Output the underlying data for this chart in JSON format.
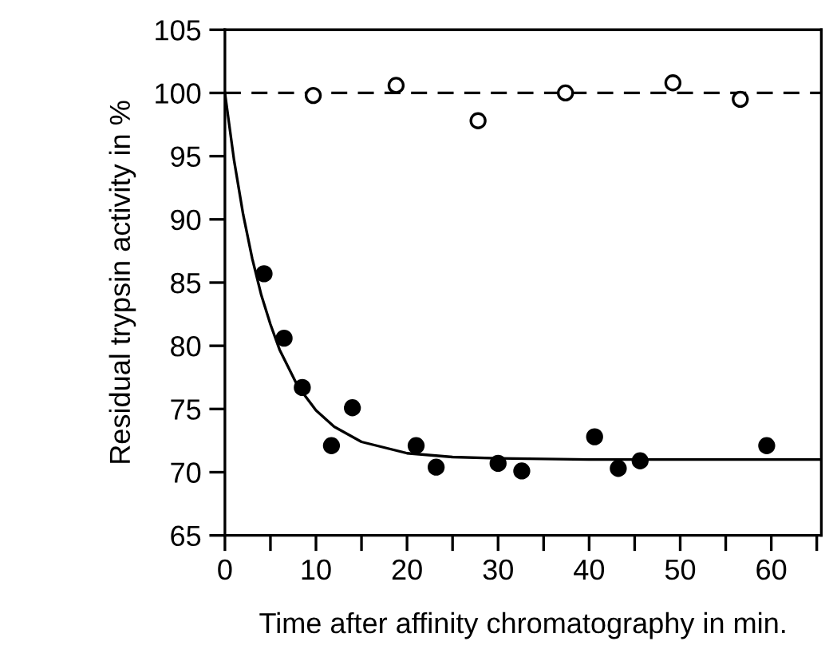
{
  "chart_data": {
    "type": "scatter",
    "xlabel": "Time after affinity chromatography in min.",
    "ylabel": "Residual trypsin activity in %",
    "xlim": [
      0,
      65.5
    ],
    "ylim": [
      65,
      105
    ],
    "xticks": [
      0,
      {
        "value": 5,
        "label": null
      },
      10,
      {
        "value": 15,
        "label": null
      },
      20,
      {
        "value": 25,
        "label": null
      },
      30,
      {
        "value": 35,
        "label": null
      },
      40,
      {
        "value": 45,
        "label": null
      },
      50,
      {
        "value": 55,
        "label": null
      },
      60,
      {
        "value": 65,
        "label": null
      }
    ],
    "yticks": [
      65,
      70,
      75,
      80,
      85,
      90,
      95,
      100,
      105
    ],
    "grid": false,
    "legend": false,
    "ref_lines": [
      {
        "axis": "y",
        "value": 100,
        "color": "#000000",
        "line_style": "dashed"
      }
    ],
    "series": [
      {
        "marker": "circle",
        "color": "#000000",
        "x": [
          4.3,
          6.5,
          8.5,
          11.7,
          14,
          21,
          23.2,
          30,
          32.6,
          40.6,
          43.2,
          45.6,
          59.5
        ],
        "values": [
          85.7,
          80.6,
          76.7,
          72.1,
          75.1,
          72.1,
          70.4,
          70.7,
          70.1,
          72.8,
          70.3,
          70.9,
          72.1
        ]
      },
      {
        "marker": "circle",
        "color": "#ffffff",
        "x": [
          9.7,
          18.8,
          27.8,
          37.4,
          49.2,
          56.6
        ],
        "values": [
          99.8,
          100.6,
          97.8,
          100.0,
          100.8,
          99.5
        ]
      },
      {
        "type": "line",
        "marker": "none",
        "line_style": "solid",
        "color": "#000000",
        "x": [
          0,
          1,
          2,
          3,
          4,
          5,
          6,
          8,
          10,
          12,
          15,
          20,
          25,
          30,
          40,
          50,
          60,
          65.5
        ],
        "values": [
          100,
          94.7,
          90.4,
          86.9,
          84.0,
          81.7,
          79.7,
          76.8,
          74.9,
          73.6,
          72.4,
          71.5,
          71.2,
          71.1,
          71.0,
          71.0,
          71.0,
          71.0
        ]
      }
    ]
  }
}
